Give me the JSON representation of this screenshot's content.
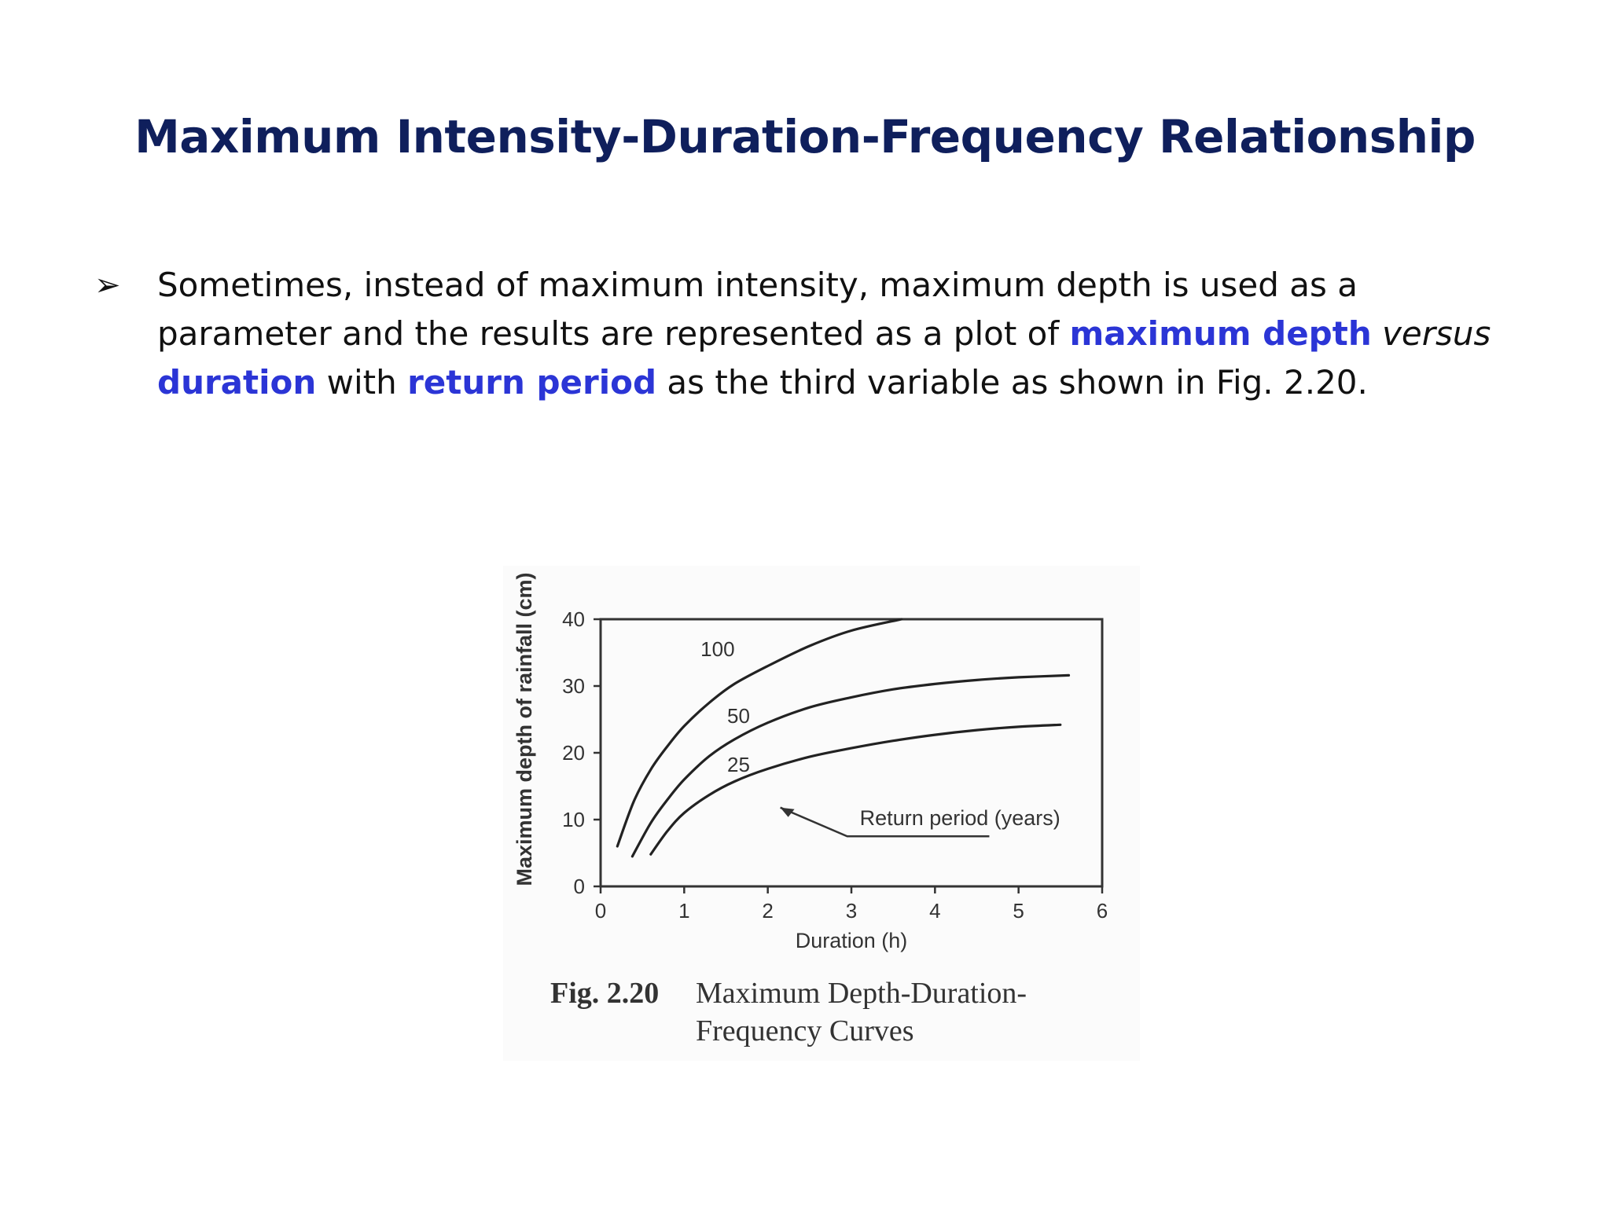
{
  "slide": {
    "title": "Maximum Intensity-Duration-Frequency Relationship",
    "bullet_marker": "➢",
    "bullet": {
      "part1": "Sometimes, instead of maximum intensity, maximum depth is used as a parameter and the results are represented as a plot of ",
      "hl1": "maximum depth",
      "space1": " ",
      "it1": "versus",
      "space2": " ",
      "hl2": "duration",
      "part2": " with ",
      "hl3": "return period",
      "part3": " as the third variable as shown in Fig. 2.20."
    }
  },
  "figure": {
    "caption_label": "Fig. 2.20",
    "caption_text": "Maximum Depth-Duration-Frequency Curves"
  },
  "chart_data": {
    "type": "line",
    "xlabel": "Duration (h)",
    "ylabel": "Maximum depth of rainfall (cm)",
    "xlim": [
      0,
      6
    ],
    "ylim": [
      0,
      40
    ],
    "xticks": [
      0,
      1,
      2,
      3,
      4,
      5,
      6
    ],
    "yticks": [
      0,
      10,
      20,
      30,
      40
    ],
    "grid": false,
    "annotation": "Return period (years)",
    "series": [
      {
        "name": "100",
        "x": [
          0.2,
          0.4,
          0.6,
          0.8,
          1.0,
          1.3,
          1.6,
          2.0,
          2.5,
          3.0,
          3.6
        ],
        "y": [
          6.0,
          12.8,
          17.5,
          21.0,
          24.0,
          27.5,
          30.3,
          33.0,
          36.0,
          38.3,
          40.0
        ]
      },
      {
        "name": "50",
        "x": [
          0.38,
          0.6,
          0.8,
          1.0,
          1.3,
          1.6,
          2.0,
          2.5,
          3.0,
          3.5,
          4.0,
          4.5,
          5.0,
          5.6
        ],
        "y": [
          4.5,
          9.5,
          13.0,
          16.0,
          19.5,
          22.0,
          24.5,
          26.8,
          28.3,
          29.5,
          30.3,
          30.9,
          31.3,
          31.6
        ]
      },
      {
        "name": "25",
        "x": [
          0.6,
          0.8,
          1.0,
          1.3,
          1.6,
          2.0,
          2.5,
          3.0,
          3.5,
          4.0,
          4.5,
          5.0,
          5.5
        ],
        "y": [
          4.8,
          8.3,
          11.0,
          13.7,
          15.7,
          17.6,
          19.4,
          20.7,
          21.8,
          22.7,
          23.4,
          23.9,
          24.2
        ]
      }
    ]
  }
}
